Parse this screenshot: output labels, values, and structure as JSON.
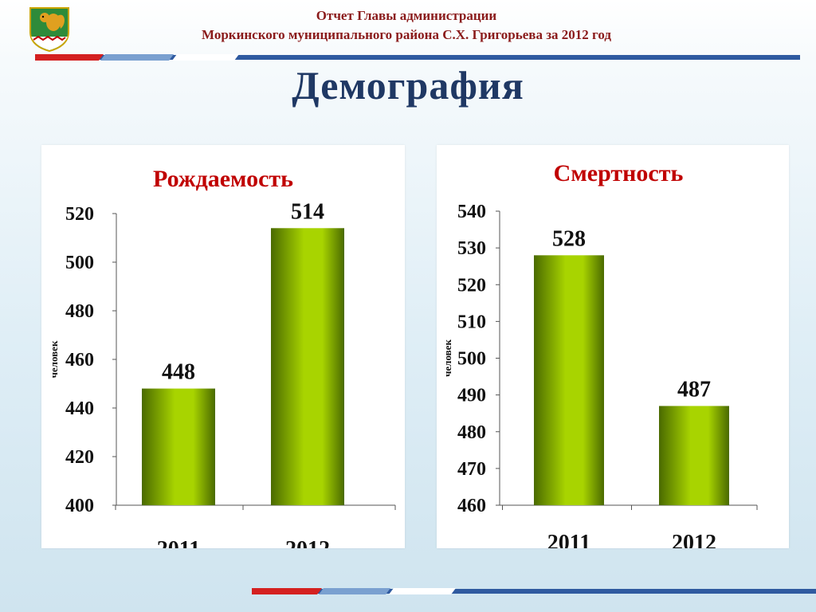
{
  "header": {
    "line1": "Отчет Главы администрации",
    "line2": "Моркинского муниципального района С.Х. Григорьева за 2012 год"
  },
  "page_title": "Демография",
  "colors": {
    "header_text": "#8a1a1a",
    "title": "#1f3864",
    "chart_title": "#c00000",
    "bar_dark": "#4a6a00",
    "bar_light": "#a8d400",
    "stripe_blue": "#2f5aa0",
    "stripe_red": "#d42020"
  },
  "icons": {
    "logo": "coat-of-arms-squirrel-icon"
  },
  "chart_data": [
    {
      "type": "bar",
      "title": "Рождаемость",
      "ylabel": "человек",
      "categories": [
        "2011",
        "2012"
      ],
      "values": [
        448,
        514
      ],
      "ylim": [
        400,
        520
      ],
      "yticks": [
        400,
        420,
        440,
        460,
        480,
        500,
        520
      ],
      "grid": false
    },
    {
      "type": "bar",
      "title": "Смертность",
      "ylabel": "человек",
      "categories": [
        "2011",
        "2012"
      ],
      "values": [
        528,
        487
      ],
      "ylim": [
        460,
        540
      ],
      "yticks": [
        460,
        470,
        480,
        490,
        500,
        510,
        520,
        530,
        540
      ],
      "grid": false
    }
  ]
}
